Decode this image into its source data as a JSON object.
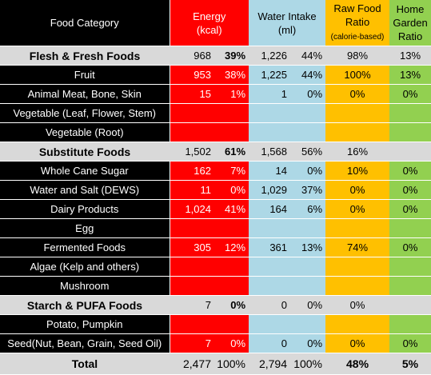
{
  "header": {
    "category": "Food Category",
    "energy_line1": "Energy",
    "energy_line2": "(kcal)",
    "water_line1": "Water Intake",
    "water_line2": "(ml)",
    "raw_line1": "Raw Food",
    "raw_line2": "Ratio",
    "raw_line3": "(calorie-based)",
    "garden_line1": "Home",
    "garden_line2": "Garden",
    "garden_line3": "Ratio"
  },
  "rows": [
    {
      "kind": "section",
      "name": "Flesh & Fresh Foods",
      "energy": "968",
      "energy_pct": "39%",
      "water": "1,226",
      "water_pct": "44%",
      "raw": "98%",
      "garden": "13%"
    },
    {
      "kind": "item",
      "name": "Fruit",
      "energy": "953",
      "energy_pct": "38%",
      "water": "1,225",
      "water_pct": "44%",
      "raw": "100%",
      "garden": "13%"
    },
    {
      "kind": "item",
      "name": "Animal Meat, Bone, Skin",
      "energy": "15",
      "energy_pct": "1%",
      "water": "1",
      "water_pct": "0%",
      "raw": "0%",
      "garden": "0%"
    },
    {
      "kind": "item",
      "name": "Vegetable (Leaf, Flower, Stem)",
      "energy": "",
      "energy_pct": "",
      "water": "",
      "water_pct": "",
      "raw": "",
      "garden": ""
    },
    {
      "kind": "item",
      "name": "Vegetable (Root)",
      "energy": "",
      "energy_pct": "",
      "water": "",
      "water_pct": "",
      "raw": "",
      "garden": ""
    },
    {
      "kind": "section",
      "name": "Substitute Foods",
      "energy": "1,502",
      "energy_pct": "61%",
      "water": "1,568",
      "water_pct": "56%",
      "raw": "16%",
      "garden": ""
    },
    {
      "kind": "item",
      "name": "Whole Cane Sugar",
      "energy": "162",
      "energy_pct": "7%",
      "water": "14",
      "water_pct": "0%",
      "raw": "10%",
      "garden": "0%"
    },
    {
      "kind": "item",
      "name": "Water and Salt (DEWS)",
      "energy": "11",
      "energy_pct": "0%",
      "water": "1,029",
      "water_pct": "37%",
      "raw": "0%",
      "garden": "0%"
    },
    {
      "kind": "item",
      "name": "Dairy Products",
      "energy": "1,024",
      "energy_pct": "41%",
      "water": "164",
      "water_pct": "6%",
      "raw": "0%",
      "garden": "0%"
    },
    {
      "kind": "item",
      "name": "Egg",
      "energy": "",
      "energy_pct": "",
      "water": "",
      "water_pct": "",
      "raw": "",
      "garden": ""
    },
    {
      "kind": "item",
      "name": "Fermented Foods",
      "energy": "305",
      "energy_pct": "12%",
      "water": "361",
      "water_pct": "13%",
      "raw": "74%",
      "garden": "0%"
    },
    {
      "kind": "item",
      "name": "Algae (Kelp and others)",
      "energy": "",
      "energy_pct": "",
      "water": "",
      "water_pct": "",
      "raw": "",
      "garden": ""
    },
    {
      "kind": "item",
      "name": "Mushroom",
      "energy": "",
      "energy_pct": "",
      "water": "",
      "water_pct": "",
      "raw": "",
      "garden": ""
    },
    {
      "kind": "section",
      "name": "Starch & PUFA Foods",
      "energy": "7",
      "energy_pct": "0%",
      "water": "0",
      "water_pct": "0%",
      "raw": "0%",
      "garden": ""
    },
    {
      "kind": "item",
      "name": "Potato, Pumpkin",
      "energy": "",
      "energy_pct": "",
      "water": "",
      "water_pct": "",
      "raw": "",
      "garden": ""
    },
    {
      "kind": "item",
      "name": "Seed(Nut, Bean, Grain, Seed Oil)",
      "energy": "7",
      "energy_pct": "0%",
      "water": "0",
      "water_pct": "0%",
      "raw": "0%",
      "garden": "0%"
    },
    {
      "kind": "total",
      "name": "Total",
      "energy": "2,477",
      "energy_pct": "100%",
      "water": "2,794",
      "water_pct": "100%",
      "raw": "48%",
      "garden": "5%"
    }
  ],
  "colors": {
    "category_bg": "#000000",
    "section_bg": "#d9d9d9",
    "energy_bg": "#ff0000",
    "water_bg": "#add8e6",
    "raw_bg": "#ffc000",
    "garden_bg": "#92d050"
  }
}
